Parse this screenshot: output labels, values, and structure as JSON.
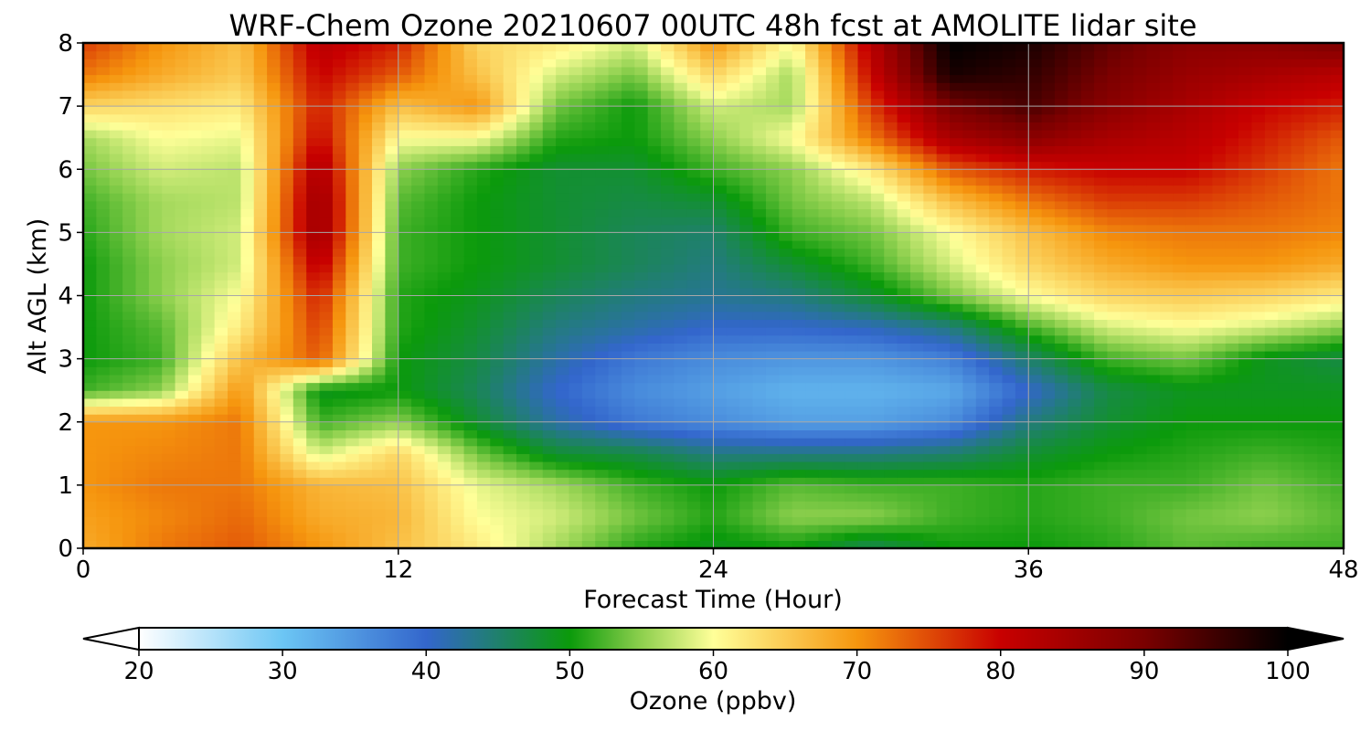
{
  "chart_data": {
    "type": "heatmap",
    "title": "WRF-Chem Ozone  20210607 00UTC 48h fcst at AMOLITE lidar site",
    "xlabel": "Forecast Time (Hour)",
    "ylabel": "Alt AGL (km)",
    "xlim": [
      0,
      48
    ],
    "ylim": [
      0,
      8
    ],
    "xticks": [
      "0",
      "12",
      "24",
      "36",
      "48"
    ],
    "yticks": [
      "0",
      "1",
      "2",
      "3",
      "4",
      "5",
      "6",
      "7",
      "8"
    ],
    "grid": true,
    "colorbar": {
      "label": "Ozone  (ppbv)",
      "min": 20,
      "max": 100,
      "extend": "both",
      "ticks": [
        "20",
        "30",
        "40",
        "50",
        "60",
        "70",
        "80",
        "90",
        "100"
      ],
      "stops": [
        {
          "value": 20,
          "color": "#ffffff"
        },
        {
          "value": 30,
          "color": "#6cc6f4"
        },
        {
          "value": 40,
          "color": "#3366cc"
        },
        {
          "value": 50,
          "color": "#0b9a0b"
        },
        {
          "value": 55,
          "color": "#8ed04e"
        },
        {
          "value": 60,
          "color": "#ffff99"
        },
        {
          "value": 70,
          "color": "#f6960e"
        },
        {
          "value": 80,
          "color": "#c80000"
        },
        {
          "value": 90,
          "color": "#7a0000"
        },
        {
          "value": 100,
          "color": "#000000"
        }
      ]
    },
    "x_hours": [
      0,
      3,
      6,
      9,
      12,
      15,
      18,
      21,
      24,
      27,
      30,
      33,
      36,
      39,
      42,
      45,
      48
    ],
    "z_km": [
      0,
      0.5,
      1,
      1.5,
      2,
      2.5,
      3,
      3.5,
      4,
      4.5,
      5,
      5.5,
      6,
      6.5,
      7,
      7.5,
      8
    ],
    "ozone_ppbv": [
      [
        68,
        72,
        74,
        70,
        66,
        62,
        56,
        51,
        49,
        50,
        46,
        50,
        50,
        51,
        53,
        52,
        52
      ],
      [
        69,
        71,
        73,
        68,
        67,
        60,
        58,
        54,
        51,
        55,
        55,
        52,
        51,
        52,
        54,
        55,
        53
      ],
      [
        70,
        72,
        72,
        67,
        66,
        59,
        56,
        52,
        50,
        53,
        52,
        52,
        51,
        52,
        52,
        54,
        52
      ],
      [
        70,
        71,
        72,
        58,
        64,
        54,
        48,
        47,
        44,
        44,
        44,
        45,
        48,
        50,
        51,
        52,
        51
      ],
      [
        70,
        70,
        72,
        52,
        55,
        48,
        42,
        38,
        36,
        34,
        34,
        36,
        44,
        48,
        50,
        50,
        50
      ],
      [
        52,
        55,
        70,
        49,
        50,
        46,
        40,
        36,
        34,
        32,
        32,
        33,
        40,
        47,
        49,
        49,
        49
      ],
      [
        50,
        52,
        66,
        74,
        50,
        47,
        42,
        38,
        36,
        35,
        35,
        37,
        45,
        52,
        54,
        49,
        47
      ],
      [
        50,
        53,
        62,
        76,
        51,
        48,
        44,
        42,
        40,
        40,
        41,
        44,
        52,
        58,
        60,
        58,
        55
      ],
      [
        50,
        55,
        60,
        78,
        51,
        49,
        46,
        44,
        43,
        44,
        48,
        54,
        60,
        64,
        65,
        64,
        62
      ],
      [
        50,
        55,
        58,
        82,
        52,
        50,
        48,
        46,
        44,
        48,
        52,
        58,
        64,
        68,
        70,
        70,
        68
      ],
      [
        51,
        56,
        58,
        86,
        52,
        50,
        48,
        46,
        45,
        52,
        54,
        60,
        66,
        71,
        72,
        72,
        71
      ],
      [
        52,
        56,
        57,
        86,
        53,
        50,
        48,
        47,
        48,
        54,
        57,
        66,
        72,
        76,
        76,
        74,
        72
      ],
      [
        54,
        58,
        57,
        84,
        55,
        51,
        48,
        48,
        52,
        55,
        62,
        74,
        78,
        80,
        80,
        76,
        72
      ],
      [
        56,
        60,
        59,
        80,
        60,
        60,
        51,
        50,
        55,
        60,
        72,
        84,
        88,
        84,
        82,
        78,
        74
      ],
      [
        64,
        63,
        62,
        78,
        66,
        70,
        54,
        50,
        58,
        56,
        76,
        90,
        94,
        88,
        84,
        80,
        78
      ],
      [
        72,
        68,
        65,
        80,
        74,
        66,
        58,
        54,
        64,
        56,
        80,
        98,
        96,
        90,
        86,
        84,
        82
      ],
      [
        76,
        70,
        66,
        82,
        78,
        64,
        62,
        58,
        70,
        60,
        82,
        100,
        98,
        92,
        88,
        88,
        90
      ]
    ]
  }
}
